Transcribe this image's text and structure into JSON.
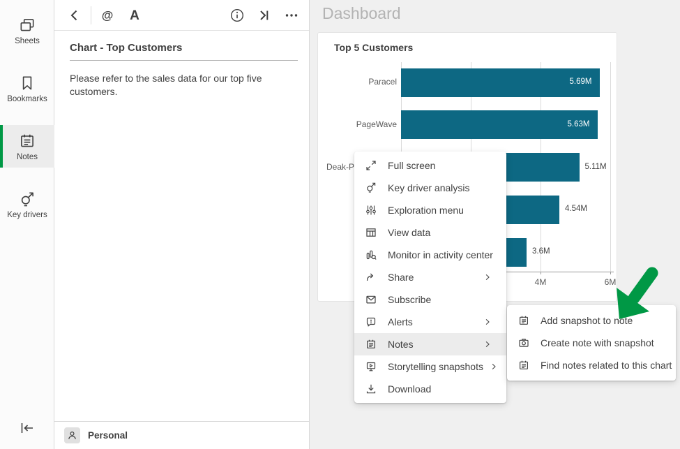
{
  "colors": {
    "accent_green": "#009845",
    "bar_color": "#0d6883",
    "arrow_green": "#009845",
    "main_background": "#f0f0f0",
    "muted_title": "#b3b3b3"
  },
  "sidebar": {
    "items": [
      {
        "label": "Sheets",
        "icon": "sheets-icon",
        "selected": false
      },
      {
        "label": "Bookmarks",
        "icon": "bookmark-icon",
        "selected": false
      },
      {
        "label": "Notes",
        "icon": "notes-icon",
        "selected": true
      },
      {
        "label": "Key drivers",
        "icon": "key-drivers-icon",
        "selected": false
      }
    ],
    "collapse_icon": "collapse-left-icon"
  },
  "notes_panel": {
    "toolbar_icons": [
      {
        "icon": "chevron-left-icon",
        "name": "back-button"
      },
      {
        "divider": true
      },
      {
        "icon": "mention-icon",
        "name": "mention-button"
      },
      {
        "icon": "format-text-icon",
        "name": "format-text-button"
      },
      {
        "spacer": true
      },
      {
        "icon": "info-icon",
        "name": "info-button"
      },
      {
        "icon": "skip-end-icon",
        "name": "expand-panel-button"
      },
      {
        "icon": "more-icon",
        "name": "more-options-button"
      }
    ],
    "title": "Chart - Top Customers",
    "body": "Please refer to the sales data for our top five customers.",
    "footer": {
      "label": "Personal",
      "icon": "person-icon"
    }
  },
  "main": {
    "page_title": "Dashboard",
    "chart_title": "Top 5 Customers"
  },
  "chart_data": {
    "type": "bar",
    "orientation": "horizontal",
    "title": "Top 5 Customers",
    "categories": [
      "Paracel",
      "PageWave",
      "Deak-P",
      "",
      ""
    ],
    "values": [
      5.69,
      5.63,
      5.11,
      4.54,
      3.6
    ],
    "value_labels": [
      "5.69M",
      "5.63M",
      "5.11M",
      "4.54M",
      "3.6M"
    ],
    "label_inside": [
      true,
      true,
      false,
      false,
      false
    ],
    "xlim": [
      0,
      6
    ],
    "gridline_values": [
      0,
      2,
      4,
      6
    ],
    "visible_tick_labels": [
      {
        "value": 4,
        "label": "4M"
      },
      {
        "value": 6,
        "label": "6M"
      }
    ],
    "grid": true,
    "bar_color": "#0d6883"
  },
  "context_menu": {
    "items": [
      {
        "label": "Full screen",
        "icon": "full-screen-icon",
        "submenu": false,
        "highlighted": false
      },
      {
        "label": "Key driver analysis",
        "icon": "key-driver-icon",
        "submenu": false,
        "highlighted": false
      },
      {
        "label": "Exploration menu",
        "icon": "sliders-icon",
        "submenu": false,
        "highlighted": false
      },
      {
        "label": "View data",
        "icon": "table-icon",
        "submenu": false,
        "highlighted": false
      },
      {
        "label": "Monitor in activity center",
        "icon": "monitor-search-icon",
        "submenu": false,
        "highlighted": false
      },
      {
        "label": "Share",
        "icon": "share-icon",
        "submenu": true,
        "highlighted": false
      },
      {
        "label": "Subscribe",
        "icon": "envelope-icon",
        "submenu": false,
        "highlighted": false
      },
      {
        "label": "Alerts",
        "icon": "alert-bubble-icon",
        "submenu": true,
        "highlighted": false
      },
      {
        "label": "Notes",
        "icon": "notepad-icon",
        "submenu": true,
        "highlighted": true
      },
      {
        "label": "Storytelling snapshots",
        "icon": "storytelling-icon",
        "submenu": true,
        "highlighted": false
      },
      {
        "label": "Download",
        "icon": "download-icon",
        "submenu": false,
        "highlighted": false
      }
    ]
  },
  "submenu": {
    "items": [
      {
        "label": "Add snapshot to note",
        "icon": "notepad-icon"
      },
      {
        "label": "Create note with snapshot",
        "icon": "camera-icon"
      },
      {
        "label": "Find notes related to this chart",
        "icon": "notepad-icon"
      }
    ]
  }
}
